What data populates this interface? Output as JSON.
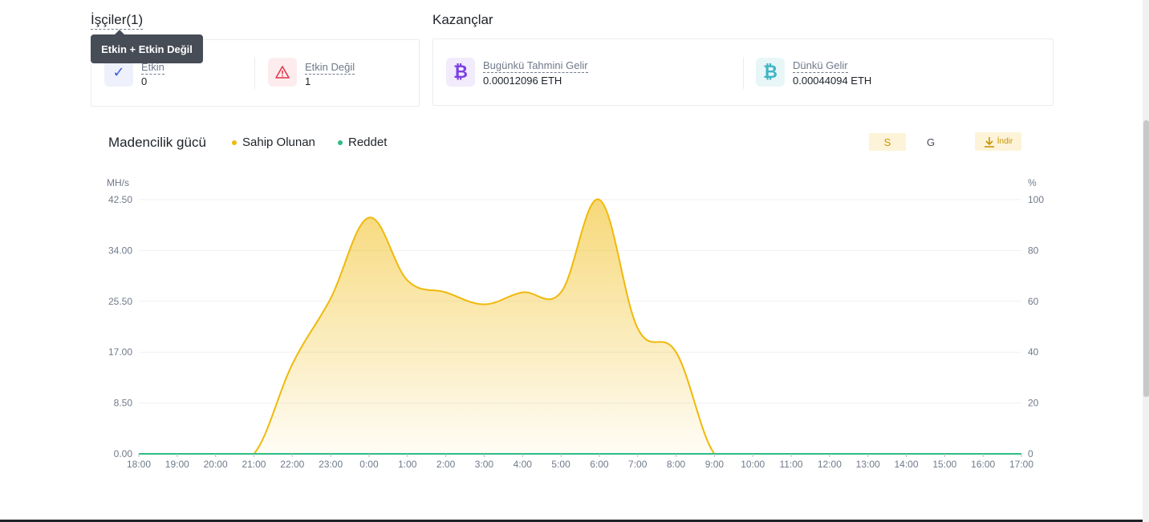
{
  "workers": {
    "title": "İşçiler(1)",
    "tooltip": "Etkin + Etkin Değil",
    "active": {
      "label": "Etkin",
      "value": "0",
      "icon": "check-icon"
    },
    "inactive": {
      "label": "Etkin Değil",
      "value": "1",
      "icon": "warning-icon"
    }
  },
  "earnings": {
    "title": "Kazançlar",
    "today": {
      "label": "Bugünkü Tahmini Gelir",
      "value": "0.00012096 ETH",
      "icon": "bitcoin-icon"
    },
    "yesterday": {
      "label": "Dünkü Gelir",
      "value": "0.00044094 ETH",
      "icon": "bitcoin-icon"
    }
  },
  "chart_controls": {
    "title": "Madencilik gücü",
    "range_s": "S",
    "range_g": "G",
    "download": "İndir",
    "download_icon": "download-icon"
  },
  "colors": {
    "owned": "#f0b90b",
    "reject": "#2ebd85",
    "accent_bg": "#fdf3d8"
  },
  "chart_data": {
    "type": "area",
    "x": [
      "18:00",
      "19:00",
      "20:00",
      "21:00",
      "22:00",
      "23:00",
      "0:00",
      "1:00",
      "2:00",
      "3:00",
      "4:00",
      "5:00",
      "6:00",
      "7:00",
      "8:00",
      "9:00",
      "10:00",
      "11:00",
      "12:00",
      "13:00",
      "14:00",
      "15:00",
      "16:00",
      "17:00"
    ],
    "x_ticks": [
      "18:00",
      "19:00",
      "20:00",
      "21:00",
      "22:00",
      "23:00",
      "0:00",
      "1:00",
      "2:00",
      "3:00",
      "4:00",
      "5:00",
      "6:00",
      "7:00",
      "8:00",
      "9:00",
      "10:00",
      "11:00",
      "12:00",
      "13:00",
      "14:00",
      "15:00",
      "16:00",
      "17:00"
    ],
    "series": [
      {
        "name": "Sahip Olunan",
        "color": "#f0b90b",
        "axis": "left",
        "values": [
          0,
          0,
          0,
          0,
          15,
          26,
          39.5,
          29,
          27,
          25,
          27,
          27,
          42.5,
          21,
          17,
          0,
          0,
          0,
          0,
          0,
          0,
          0,
          0,
          0
        ]
      },
      {
        "name": "Reddet",
        "color": "#2ebd85",
        "axis": "right",
        "values": [
          0,
          0,
          0,
          0,
          0,
          0,
          0,
          0,
          0,
          0,
          0,
          0,
          0,
          0,
          0,
          0,
          0,
          0,
          0,
          0,
          0,
          0,
          0,
          0
        ]
      }
    ],
    "ylabel_left": "MH/s",
    "ylabel_right": "%",
    "y_ticks_left": [
      "0.00",
      "8.50",
      "17.00",
      "25.50",
      "34.00",
      "42.50"
    ],
    "y_ticks_right": [
      "0",
      "20",
      "40",
      "60",
      "80",
      "100"
    ],
    "ylim_left": [
      0,
      42.5
    ],
    "ylim_right": [
      0,
      100
    ],
    "grid": true,
    "legend": "top-left"
  }
}
